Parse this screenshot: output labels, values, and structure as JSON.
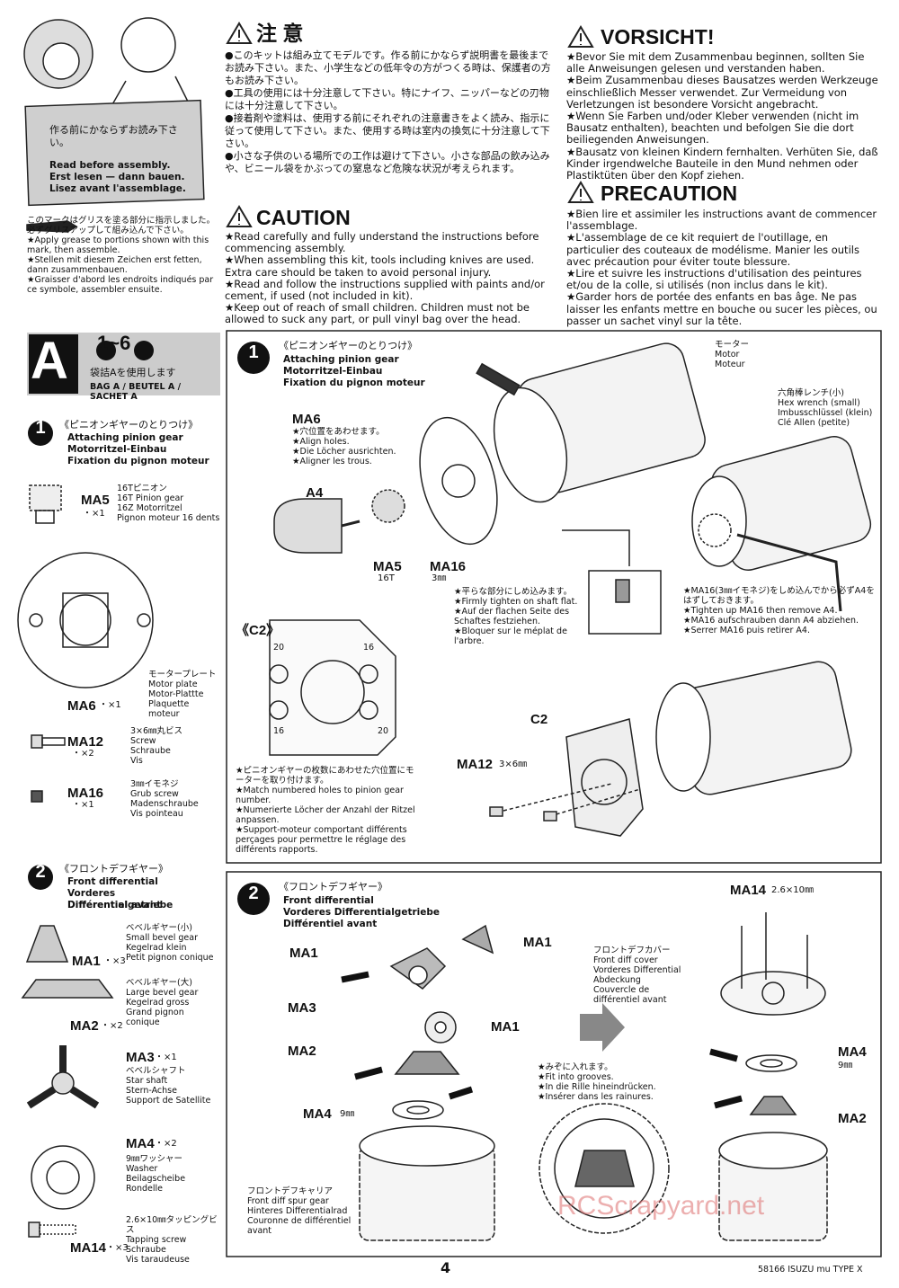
{
  "intro": {
    "jp": "作る前にかならずお読み下さい。",
    "en": "Read before assembly.",
    "de": "Erst lesen — dann bauen.",
    "fr": "Lisez avant l'assemblage."
  },
  "grease_note": [
    "このマークはグリスを塗る部分に指示しました。必ずグリスアップして組み込んで下さい。",
    "★Apply grease to portions shown with this mark, then assemble.",
    "★Stellen mit diesem Zeichen erst fetten, dann zusammenbauen.",
    "★Graisser d'abord les endroits indiqués par ce symbole, assembler ensuite."
  ],
  "caution_jp": {
    "title": "注 意",
    "items": [
      "●このキットは組み立てモデルです。作る前にかならず説明書を最後までお読み下さい。また、小学生などの低年令の方がつくる時は、保護者の方もお読み下さい。",
      "●工具の使用には十分注意して下さい。特にナイフ、ニッパーなどの刃物には十分注意して下さい。",
      "●接着剤や塗料は、使用する前にそれぞれの注意書きをよく読み、指示に従って使用して下さい。また、使用する時は室内の換気に十分注意して下さい。",
      "●小さな子供のいる場所での工作は避けて下さい。小さな部品の飲み込みや、ビニール袋をかぶっての窒息など危険な状況が考えられます。"
    ]
  },
  "caution_en": {
    "title": "CAUTION",
    "items": [
      "★Read carefully and fully understand the instructions before commencing assembly.",
      "★When assembling this kit, tools including knives are used. Extra care should be taken to avoid personal injury.",
      "★Read and follow the instructions supplied with paints and/or cement, if used (not included in kit).",
      "★Keep out of reach of small children. Children must not be allowed to suck any part, or pull vinyl bag over the head."
    ]
  },
  "vorsicht": {
    "title": "VORSICHT!",
    "items": [
      "★Bevor Sie mit dem Zusammenbau beginnen, sollten Sie alle Anweisungen gelesen und verstanden haben.",
      "★Beim Zusammenbau dieses Bausatzes werden Werkzeuge einschließlich Messer verwendet. Zur Vermeidung von Verletzungen ist besondere Vorsicht angebracht.",
      "★Wenn Sie Farben und/oder Kleber verwenden (nicht im Bausatz enthalten), beachten und befolgen Sie die dort beiliegenden Anweisungen.",
      "★Bausatz von kleinen Kindern fernhalten. Verhüten Sie, daß Kinder irgendwelche Bauteile in den Mund nehmen oder Plastiktüten über den Kopf ziehen."
    ]
  },
  "precaution": {
    "title": "PRECAUTION",
    "items": [
      "★Bien lire et assimiler les instructions avant de commencer l'assemblage.",
      "★L'assemblage de ce kit requiert de l'outillage, en particulier des couteaux de modélisme. Manier les outils avec précaution pour éviter toute blessure.",
      "★Lire et suivre les instructions d'utilisation des peintures et/ou de la colle, si utilisés (non inclus dans le kit).",
      "★Garder hors de portée des enfants en bas âge. Ne pas laisser les enfants mettre en bouche ou sucer les pièces, ou passer un sachet vinyl sur la tête."
    ]
  },
  "step_group": {
    "letter": "A",
    "range": "1~6",
    "bag_jp": "袋詰Aを使用します",
    "bag": "BAG A / BEUTEL A / SACHET A"
  },
  "parts_step1": {
    "number": "1",
    "jp": "《ピニオンギヤーのとりつけ》",
    "en": "Attaching pinion gear",
    "de": "Motorritzel-Einbau",
    "fr": "Fixation du pignon moteur",
    "parts": [
      {
        "code": "MA5",
        "qty": "・×1",
        "names": [
          "16Tピニオン",
          "16T Pinion gear",
          "16Z Motorritzel",
          "Pignon moteur 16 dents"
        ]
      },
      {
        "code": "MA6",
        "qty": "・×1",
        "names": [
          "モータープレート",
          "Motor plate",
          "Motor-Plattte",
          "Plaquette moteur"
        ]
      },
      {
        "code": "MA12",
        "qty": "・×2",
        "names": [
          "3×6㎜丸ビス",
          "Screw",
          "Schraube",
          "Vis"
        ]
      },
      {
        "code": "MA16",
        "qty": "・×1",
        "names": [
          "3㎜イモネジ",
          "Grub screw",
          "Madenschraube",
          "Vis pointeau"
        ]
      }
    ]
  },
  "parts_step2": {
    "number": "2",
    "jp": "《フロントデフギヤー》",
    "en": "Front differential",
    "de": "Vorderes Differentialgetriebe",
    "fr": "Différentiel avant",
    "parts": [
      {
        "code": "MA1",
        "qty": "・×3",
        "names": [
          "ベベルギヤー(小)",
          "Small bevel gear",
          "Kegelrad klein",
          "Petit pignon conique"
        ]
      },
      {
        "code": "MA2",
        "qty": "・×2",
        "names": [
          "ベベルギヤー(大)",
          "Large bevel gear",
          "Kegelrad gross",
          "Grand pignon conique"
        ]
      },
      {
        "code": "MA3",
        "qty": "・×1",
        "names": [
          "ベベルシャフト",
          "Star shaft",
          "Stern-Achse",
          "Support de Satellite"
        ]
      },
      {
        "code": "MA4",
        "qty": "・×2",
        "names": [
          "9㎜ワッシャー",
          "Washer",
          "Beilagscheibe",
          "Rondelle"
        ]
      },
      {
        "code": "MA14",
        "qty": "・×3",
        "names": [
          "2.6×10㎜タッピングビス",
          "Tapping screw",
          "Schraube",
          "Vis taraudeuse"
        ]
      }
    ]
  },
  "step1": {
    "number": "1",
    "jp": "《ピニオンギヤーのとりつけ》",
    "en": "Attaching pinion gear",
    "de": "Motorritzel-Einbau",
    "fr": "Fixation du pignon moteur",
    "motor": [
      "モーター",
      "Motor",
      "Moteur"
    ],
    "wrench": [
      "六角棒レンチ(小)",
      "Hex wrench (small)",
      "Imbusschlüssel (klein)",
      "Clé Allen (petite)"
    ],
    "ma6": "MA6",
    "ma6_note": [
      "★穴位置をあわせます。",
      "★Align holes.",
      "★Die Löcher ausrichten.",
      "★Aligner les trous."
    ],
    "a4": "A4",
    "ma5": "MA5",
    "ma5_size": "16T",
    "ma16": "MA16",
    "ma16_size": "3㎜",
    "flat_note": [
      "★平らな部分にしめ込みます。",
      "★Firmly tighten on shaft flat.",
      "★Auf der flachen Seite des Schaftes festziehen.",
      "★Bloquer sur le méplat de l'arbre."
    ],
    "remove_note": [
      "★MA16(3㎜イモネジ)をしめ込んでから必ずA4をはずしておきます。",
      "★Tighten up MA16 then remove A4.",
      "★MA16 aufschrauben dann A4 abziehen.",
      "★Serrer MA16 puis retirer A4."
    ],
    "c2_title": "《C2》",
    "c2_holes": [
      "20",
      "16",
      "16",
      "20"
    ],
    "pinion_note": [
      "★ピニオンギヤーの枚数にあわせた穴位置にモーターを取り付けます。",
      "★Match numbered holes to pinion gear number.",
      "★Numerierte Löcher der Anzahl der Ritzel anpassen.",
      "★Support-moteur comportant différents perçages pour permettre le réglage des différents rapports."
    ],
    "c2": "C2",
    "ma12": "MA12",
    "ma12_size": "3×6㎜"
  },
  "step2": {
    "number": "2",
    "jp": "《フロントデフギヤー》",
    "en": "Front differential",
    "de": "Vorderes Differentialgetriebe",
    "fr": "Différentiel avant",
    "ma1_a": "MA1",
    "ma1_b": "MA1",
    "ma1_c": "MA1",
    "ma3": "MA3",
    "ma2": "MA2",
    "ma4": "MA4",
    "ma4_size": "9㎜",
    "carrier": [
      "フロントデフキャリア",
      "Front diff spur gear",
      "Hinteres Differentialrad",
      "Couronne de différentiel avant"
    ],
    "cover": [
      "フロントデフカバー",
      "Front diff cover",
      "Vorderes Differential Abdeckung",
      "Couvercle de différentiel avant"
    ],
    "groove_note": [
      "★みぞに入れます。",
      "★Fit into grooves.",
      "★In die Rille hineindrücken.",
      "★Insérer dans les rainures."
    ],
    "ma14": "MA14",
    "ma14_size": "2.6×10㎜",
    "ma4_r": "MA4",
    "ma4_r_size": "9㎜",
    "ma2_r": "MA2"
  },
  "footer": {
    "page": "4",
    "model": "58166 ISUZU mu TYPE X"
  },
  "watermark": "RCScrapyard.net"
}
